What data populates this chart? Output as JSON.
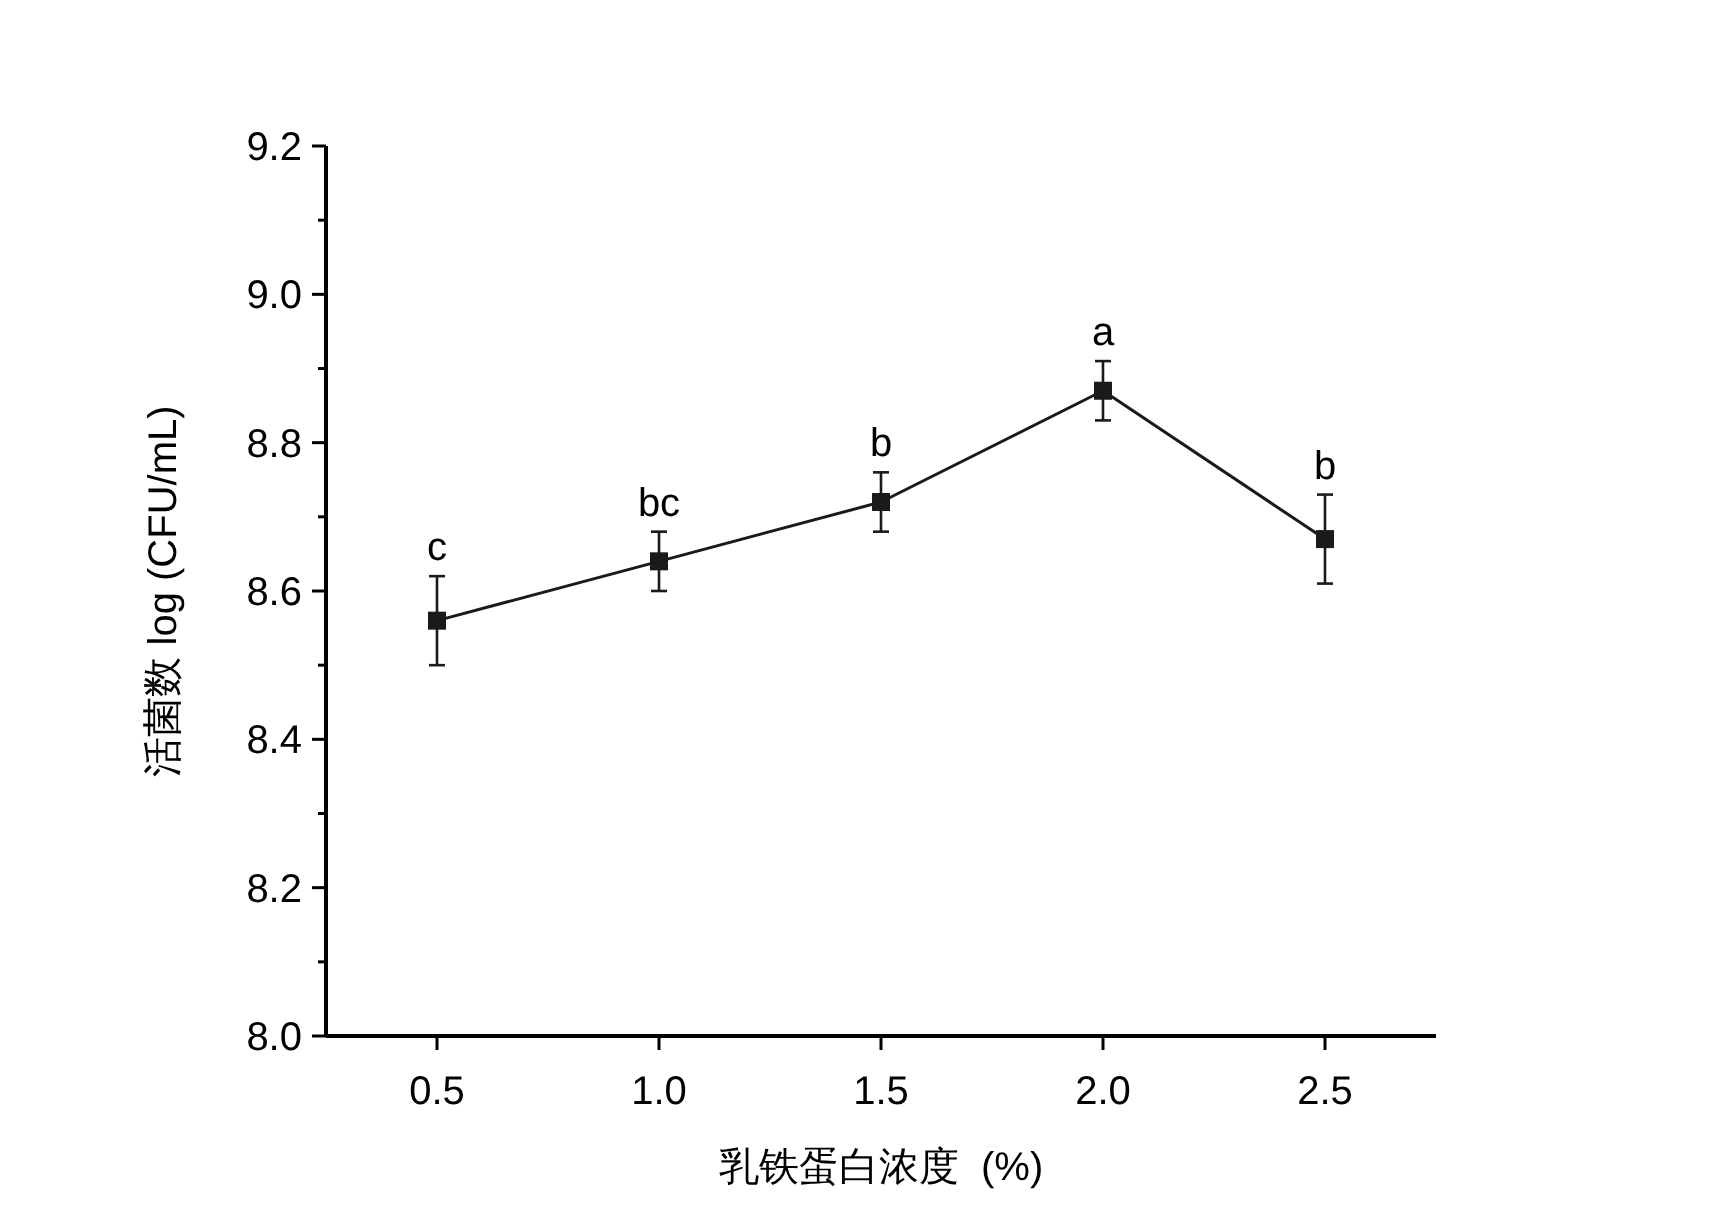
{
  "chart_data": {
    "type": "line",
    "xlabel": "乳铁蛋白浓度  (%)",
    "ylabel": "活菌数 log (CFU/mL)",
    "x": [
      0.5,
      1.0,
      1.5,
      2.0,
      2.5
    ],
    "series": [
      {
        "color": "#1a1a1a",
        "values": [
          8.56,
          8.64,
          8.72,
          8.87,
          8.67
        ],
        "errors": [
          0.06,
          0.04,
          0.04,
          0.04,
          0.06
        ]
      }
    ],
    "xlim": [
      0.25,
      2.75
    ],
    "xticks": [
      {
        "value": 0.5,
        "label": "0.5"
      },
      {
        "value": 1.0,
        "label": "1.0"
      },
      {
        "value": 1.5,
        "label": "1.5"
      },
      {
        "value": 2.0,
        "label": "2.0"
      },
      {
        "value": 2.5,
        "label": "2.5"
      }
    ],
    "ylim": [
      8.0,
      9.2
    ],
    "yticks": [
      {
        "value": 8.0,
        "label": "8.0"
      },
      {
        "value": 8.1,
        "label": null
      },
      {
        "value": 8.2,
        "label": "8.2"
      },
      {
        "value": 8.3,
        "label": null
      },
      {
        "value": 8.4,
        "label": "8.4"
      },
      {
        "value": 8.5,
        "label": null
      },
      {
        "value": 8.6,
        "label": "8.6"
      },
      {
        "value": 8.7,
        "label": null
      },
      {
        "value": 8.8,
        "label": "8.8"
      },
      {
        "value": 8.9,
        "label": null
      },
      {
        "value": 9.0,
        "label": "9.0"
      },
      {
        "value": 9.1,
        "label": null
      },
      {
        "value": 9.2,
        "label": "9.2"
      }
    ],
    "annotations": [
      {
        "text": "c",
        "x": 0.5,
        "y": 8.62
      },
      {
        "text": "bc",
        "x": 1.0,
        "y": 8.68
      },
      {
        "text": "b",
        "x": 1.5,
        "y": 8.76
      },
      {
        "text": "a",
        "x": 2.0,
        "y": 8.91
      },
      {
        "text": "b",
        "x": 2.5,
        "y": 8.73
      }
    ],
    "grid": false,
    "marker": "square",
    "line_style": "solid"
  }
}
